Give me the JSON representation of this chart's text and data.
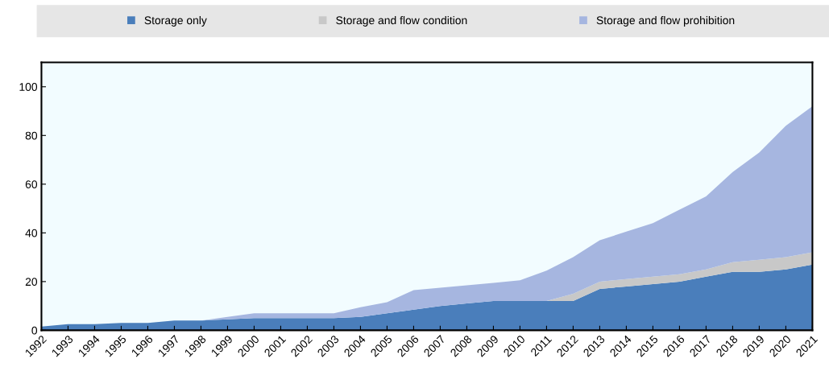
{
  "chart_data": {
    "type": "area",
    "stacked": true,
    "x": [
      1992,
      1993,
      1994,
      1995,
      1996,
      1997,
      1998,
      1999,
      2000,
      2001,
      2002,
      2003,
      2004,
      2005,
      2006,
      2007,
      2008,
      2009,
      2010,
      2011,
      2012,
      2013,
      2014,
      2015,
      2016,
      2017,
      2018,
      2019,
      2020,
      2021
    ],
    "series": [
      {
        "name": "Storage only",
        "color": "#4a7ebb",
        "values": [
          1.5,
          2.5,
          2.5,
          3,
          3,
          4,
          4,
          4.5,
          5,
          5,
          5,
          5,
          5.5,
          7,
          8.5,
          10,
          11,
          12,
          12,
          12,
          12,
          17,
          18,
          19,
          20,
          22,
          24,
          24,
          25,
          27
        ]
      },
      {
        "name": "Storage and flow condition",
        "color": "#c8c8c8",
        "values": [
          0,
          0,
          0,
          0,
          0,
          0,
          0,
          0,
          0,
          0,
          0,
          0,
          0,
          0,
          0,
          0,
          0,
          0,
          0,
          0,
          3,
          3,
          3,
          3,
          3,
          3,
          4,
          5,
          5,
          5
        ]
      },
      {
        "name": "Storage and flow prohibition",
        "color": "#a6b6e0",
        "values": [
          0,
          0,
          0,
          0,
          0,
          0,
          0,
          1,
          2,
          2,
          2,
          2,
          4,
          4.5,
          8,
          7.5,
          7.5,
          7.5,
          8.5,
          12.5,
          15,
          17,
          19.5,
          22,
          26.5,
          30,
          37,
          44,
          54,
          60
        ]
      }
    ],
    "xlim": [
      1992,
      2021
    ],
    "xticks": [
      1992,
      1993,
      1994,
      1995,
      1996,
      1997,
      1998,
      1999,
      2000,
      2001,
      2002,
      2003,
      2004,
      2005,
      2006,
      2007,
      2008,
      2009,
      2010,
      2011,
      2012,
      2013,
      2014,
      2015,
      2016,
      2017,
      2018,
      2019,
      2020,
      2021
    ],
    "ylim": [
      0,
      110
    ],
    "yticks": [
      0,
      20,
      40,
      60,
      80,
      100
    ],
    "legend": "top",
    "grid": false
  }
}
